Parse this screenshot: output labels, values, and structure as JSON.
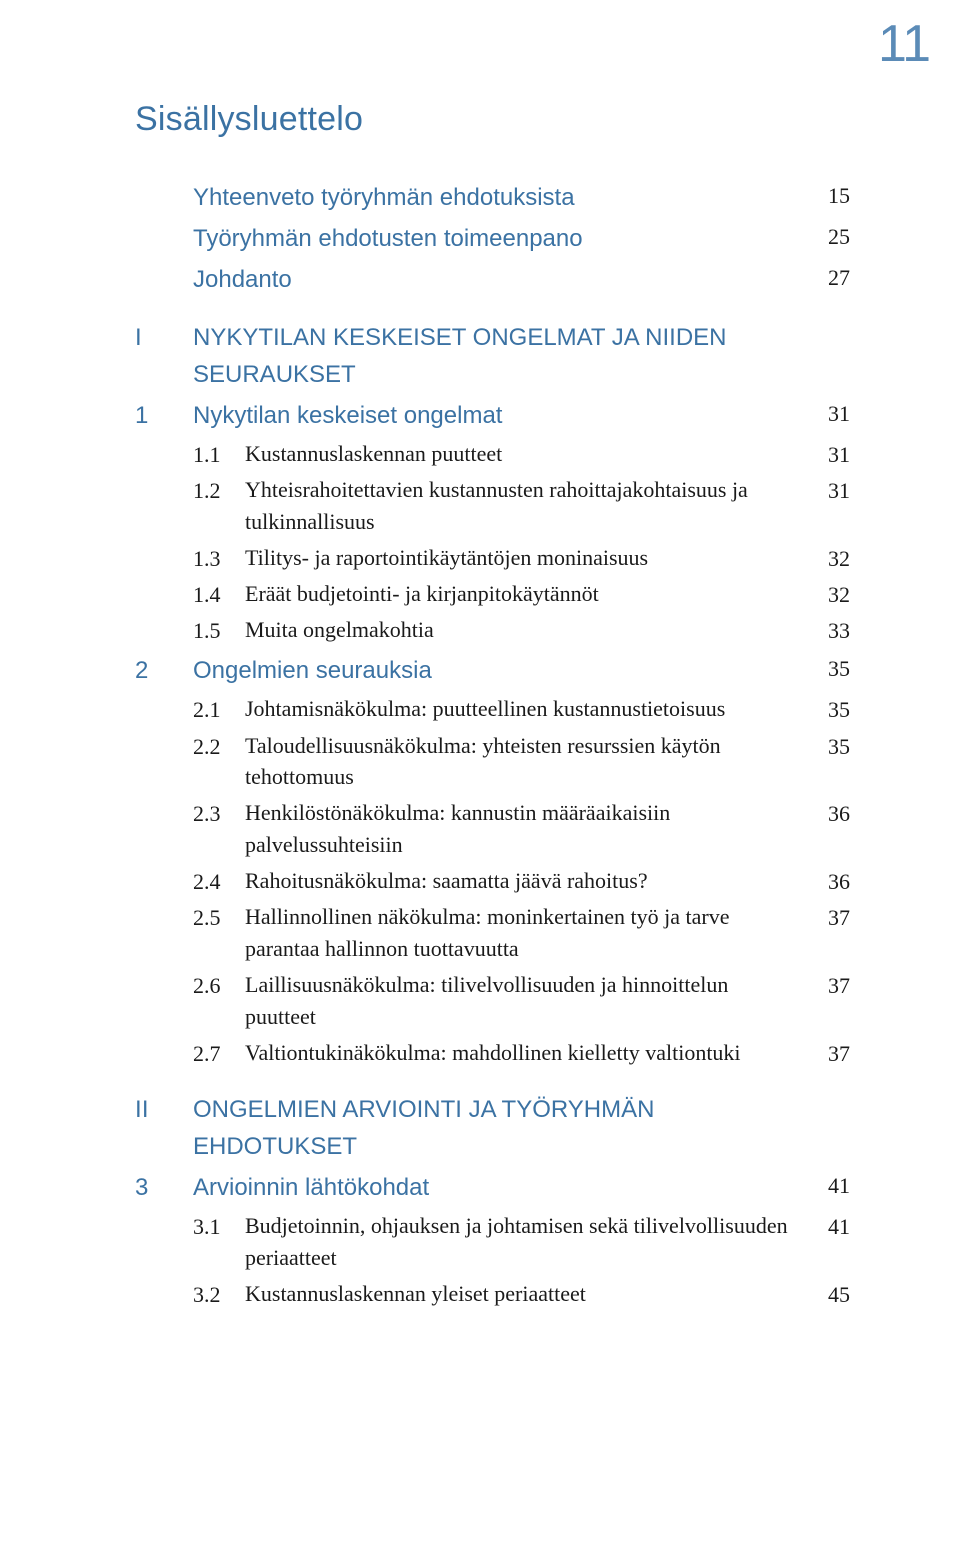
{
  "page_number": "11",
  "title": "Sisällysluettelo",
  "colors": {
    "heading": "#3b72a3",
    "page_number": "#5b8bb7",
    "body_text": "#1a1a1a",
    "background": "#ffffff"
  },
  "typography": {
    "heading_font": "Segoe UI / Myriad-like condensed sans",
    "body_font": "Georgia / Adobe Garamond-like serif",
    "title_fontsize_pt": 26,
    "top_row_fontsize_pt": 18,
    "sub_row_fontsize_pt": 16,
    "page_corner_fontsize_pt": 40
  },
  "entries": [
    {
      "level": "top",
      "num": "",
      "text": "Yhteenveto työryhmän ehdotuksista",
      "page": "15"
    },
    {
      "level": "top",
      "num": "",
      "text": "Työryhmän ehdotusten toimeenpano",
      "page": "25"
    },
    {
      "level": "top",
      "num": "",
      "text": "Johdanto",
      "page": "27"
    },
    {
      "level": "part",
      "num": "I",
      "text": "NYKYTILAN KESKEISET ONGELMAT JA NIIDEN SEURAUKSET",
      "page": ""
    },
    {
      "level": "chapter",
      "num": "1",
      "text": "Nykytilan keskeiset ongelmat",
      "page": "31"
    },
    {
      "level": "sub",
      "num": "1.1",
      "text": "Kustannuslaskennan puutteet",
      "page": "31"
    },
    {
      "level": "sub",
      "num": "1.2",
      "text": "Yhteisrahoitettavien kustannusten rahoittajakohtaisuus ja tulkinnallisuus",
      "page": "31"
    },
    {
      "level": "sub",
      "num": "1.3",
      "text": "Tilitys- ja raportointikäytäntöjen moninaisuus",
      "page": "32"
    },
    {
      "level": "sub",
      "num": "1.4",
      "text": "Eräät budjetointi- ja kirjanpitokäytännöt",
      "page": "32"
    },
    {
      "level": "sub",
      "num": "1.5",
      "text": "Muita ongelmakohtia",
      "page": "33"
    },
    {
      "level": "chapter",
      "num": "2",
      "text": "Ongelmien seurauksia",
      "page": "35"
    },
    {
      "level": "sub",
      "num": "2.1",
      "text": "Johtamisnäkökulma: puutteellinen kustannustietoisuus",
      "page": "35"
    },
    {
      "level": "sub",
      "num": "2.2",
      "text": "Taloudellisuusnäkökulma: yhteisten resurssien käytön tehottomuus",
      "page": "35"
    },
    {
      "level": "sub",
      "num": "2.3",
      "text": "Henkilöstönäkökulma: kannustin määräaikaisiin palvelussuhteisiin",
      "page": "36"
    },
    {
      "level": "sub",
      "num": "2.4",
      "text": "Rahoitusnäkökulma: saamatta jäävä rahoitus?",
      "page": "36"
    },
    {
      "level": "sub",
      "num": "2.5",
      "text": "Hallinnollinen näkökulma: moninkertainen työ ja tarve parantaa hallinnon tuottavuutta",
      "page": "37"
    },
    {
      "level": "sub",
      "num": "2.6",
      "text": "Laillisuusnäkökulma: tilivelvollisuuden ja hinnoittelun puutteet",
      "page": "37"
    },
    {
      "level": "sub",
      "num": "2.7",
      "text": "Valtiontukinäkökulma: mahdollinen kielletty valtiontuki",
      "page": "37"
    },
    {
      "level": "part",
      "num": "II",
      "text": "ONGELMIEN ARVIOINTI JA TYÖRYHMÄN EHDOTUKSET",
      "page": ""
    },
    {
      "level": "chapter",
      "num": "3",
      "text": "Arvioinnin lähtökohdat",
      "page": "41"
    },
    {
      "level": "sub",
      "num": "3.1",
      "text": "Budjetoinnin, ohjauksen ja johtamisen sekä tilivelvollisuuden periaatteet",
      "page": "41"
    },
    {
      "level": "sub",
      "num": "3.2",
      "text": "Kustannuslaskennan yleiset periaatteet",
      "page": "45"
    }
  ]
}
